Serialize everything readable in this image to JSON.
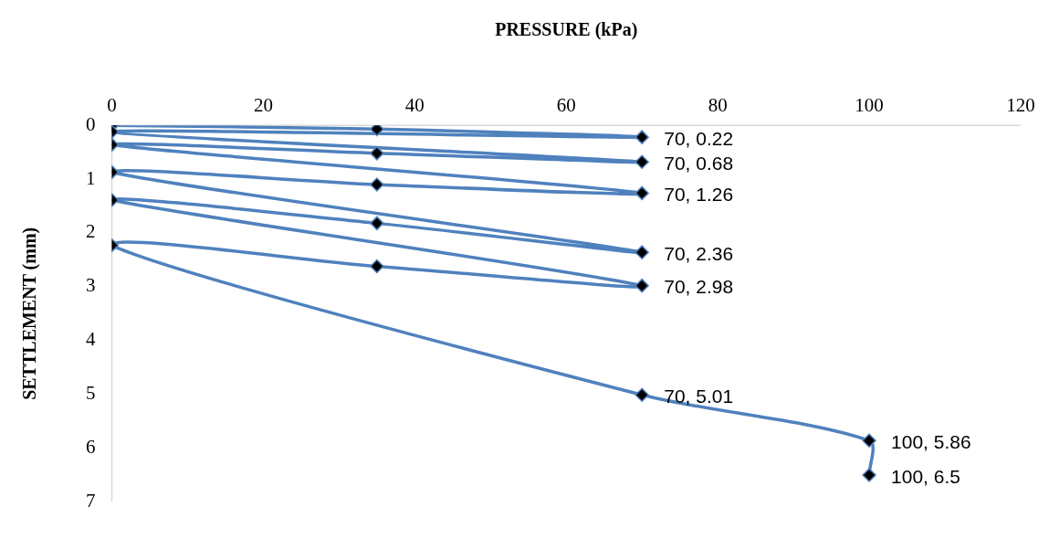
{
  "chart_data": {
    "type": "line",
    "xlabel": "PRESSURE (kPa)",
    "ylabel": "SETTLEMENT (mm)",
    "series": [
      {
        "color": "#4f81bd",
        "x": [
          0,
          35,
          70,
          0,
          70,
          35,
          0,
          70,
          35,
          0,
          70,
          35,
          0,
          70,
          35,
          0,
          70,
          100,
          100
        ],
        "values": [
          0,
          0.07,
          0.22,
          0.12,
          0.68,
          0.52,
          0.36,
          1.26,
          1.1,
          0.87,
          2.36,
          1.82,
          1.39,
          2.98,
          2.62,
          2.23,
          5.01,
          5.86,
          6.5
        ],
        "value_labels": [
          null,
          null,
          "70, 0.22",
          null,
          "70, 0.68",
          null,
          null,
          "70, 1.26",
          null,
          null,
          "70, 2.36",
          null,
          null,
          "70, 2.98",
          null,
          null,
          "70, 5.01",
          "100, 5.86",
          "100, 6.5"
        ]
      }
    ],
    "xlim": [
      0,
      120
    ],
    "xticks": [
      0,
      20,
      40,
      60,
      80,
      100,
      120
    ],
    "ylim": [
      7,
      0
    ],
    "yticks": [
      0,
      1,
      2,
      3,
      4,
      5,
      6,
      7
    ],
    "grid": false,
    "legend": false,
    "marker": "diamond",
    "line_style": "solid"
  }
}
